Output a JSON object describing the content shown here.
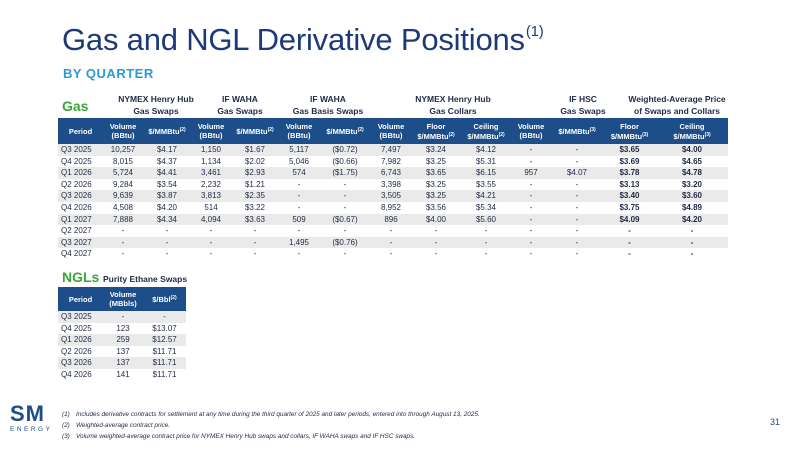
{
  "title": "Gas and NGL Derivative Positions",
  "title_sup": "(1)",
  "subtitle": "BY QUARTER",
  "gas": {
    "label": "Gas",
    "groups": [
      {
        "line1": "NYMEX Henry Hub",
        "line2": "Gas Swaps"
      },
      {
        "line1": "IF WAHA",
        "line2": "Gas Swaps"
      },
      {
        "line1": "IF WAHA",
        "line2": "Gas Basis Swaps"
      },
      {
        "line1": "NYMEX Henry Hub",
        "line2": "Gas Collars"
      },
      {
        "line1": "IF HSC",
        "line2": "Gas Swaps"
      },
      {
        "line1": "Weighted-Average Price",
        "line2": "of Swaps and Collars"
      }
    ],
    "headers": {
      "period": "Period",
      "volume_bbtu_1": "Volume",
      "volume_bbtu_2": "(BBtu)",
      "price": "$/MMBtu",
      "sup2": "(2)",
      "sup3": "(3)",
      "floor_1": "Floor",
      "ceiling_1": "Ceiling",
      "per_mmbtu": "$/MMBtu"
    },
    "rows": [
      [
        "Q3 2025",
        "10,257",
        "$4.17",
        "1,150",
        "$1.67",
        "5,117",
        "($0.72)",
        "7,497",
        "$3.24",
        "$4.12",
        "-",
        "-",
        "$3.65",
        "$4.00"
      ],
      [
        "Q4 2025",
        "8,015",
        "$4.37",
        "1,134",
        "$2.02",
        "5,046",
        "($0.66)",
        "7,982",
        "$3.25",
        "$5.31",
        "-",
        "-",
        "$3.69",
        "$4.65"
      ],
      [
        "Q1 2026",
        "5,724",
        "$4.41",
        "3,461",
        "$2.93",
        "574",
        "($1.75)",
        "6,743",
        "$3.65",
        "$6.15",
        "957",
        "$4.07",
        "$3.78",
        "$4.78"
      ],
      [
        "Q2 2026",
        "9,284",
        "$3.54",
        "2,232",
        "$1.21",
        "-",
        "-",
        "3,398",
        "$3.25",
        "$3.55",
        "-",
        "-",
        "$3.13",
        "$3.20"
      ],
      [
        "Q3 2026",
        "9,639",
        "$3.87",
        "3,813",
        "$2.35",
        "-",
        "-",
        "3,505",
        "$3.25",
        "$4.21",
        "-",
        "-",
        "$3.40",
        "$3.60"
      ],
      [
        "Q4 2026",
        "4,508",
        "$4.20",
        "514",
        "$3.22",
        "-",
        "-",
        "8,952",
        "$3.56",
        "$5.34",
        "-",
        "-",
        "$3.75",
        "$4.89"
      ],
      [
        "Q1 2027",
        "7,888",
        "$4.34",
        "4,094",
        "$3.63",
        "509",
        "($0.67)",
        "896",
        "$4.00",
        "$5.60",
        "-",
        "-",
        "$4.09",
        "$4.20"
      ],
      [
        "Q2 2027",
        "-",
        "-",
        "-",
        "-",
        "-",
        "-",
        "-",
        "-",
        "-",
        "-",
        "-",
        "-",
        "-"
      ],
      [
        "Q3 2027",
        "-",
        "-",
        "-",
        "-",
        "1,495",
        "($0.76)",
        "-",
        "-",
        "-",
        "-",
        "-",
        "-",
        "-"
      ],
      [
        "Q4 2027",
        "-",
        "-",
        "-",
        "-",
        "-",
        "-",
        "-",
        "-",
        "-",
        "-",
        "-",
        "-",
        "-"
      ]
    ]
  },
  "ngl": {
    "label": "NGLs",
    "group": "Purity Ethane Swaps",
    "headers": {
      "period": "Period",
      "volume_1": "Volume",
      "volume_2": "(MBbls)",
      "price": "$/Bbl",
      "sup2": "(2)"
    },
    "rows": [
      [
        "Q3 2025",
        "-",
        "-"
      ],
      [
        "Q4 2025",
        "123",
        "$13.07"
      ],
      [
        "Q1 2026",
        "259",
        "$12.57"
      ],
      [
        "Q2 2026",
        "137",
        "$11.71"
      ],
      [
        "Q3 2026",
        "137",
        "$11.71"
      ],
      [
        "Q4 2026",
        "141",
        "$11.71"
      ]
    ]
  },
  "footnotes": [
    {
      "num": "(1)",
      "text": "Includes derivative contracts for settlement at any time during the third quarter of 2025 and later periods, entered into through August 13, 2025."
    },
    {
      "num": "(2)",
      "text": "Weighted-average contract price."
    },
    {
      "num": "(3)",
      "text": "Volume weighted-average contract price for NYMEX Henry Hub swaps and collars, IF WAHA swaps and IF HSC swaps."
    }
  ],
  "logo": {
    "top": "SM",
    "bottom": "ENERGY"
  },
  "page_number": "31",
  "colors": {
    "title": "#1d3a78",
    "subtitle": "#2b9ad6",
    "section_label": "#3aa639",
    "header_bg": "#1d4e8a",
    "row_alt": "#eaeaea"
  }
}
